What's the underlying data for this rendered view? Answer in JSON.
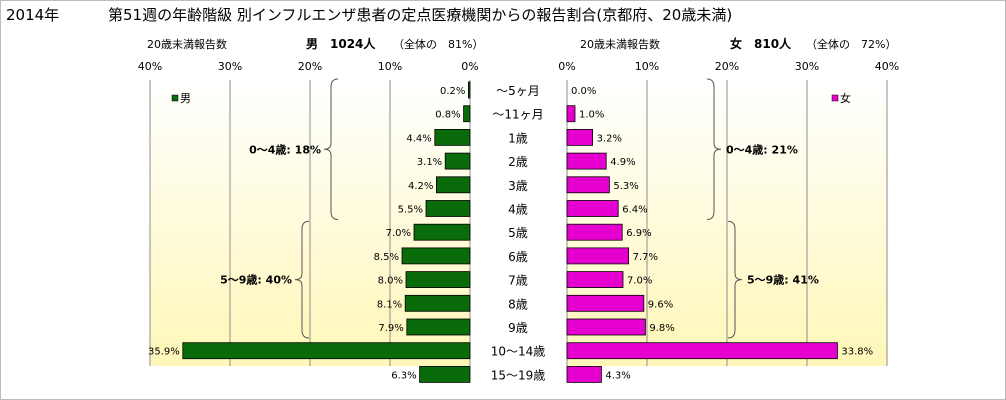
{
  "title": {
    "year": "2014年",
    "main": "第51週の年齢階級 別インフルエンザ患者の定点医療機関からの報告割合(京都府、20歳未満)"
  },
  "male_header": {
    "count_label": "20歳未満報告数",
    "summary": "男　1024人",
    "share": "（全体の　81%）"
  },
  "female_header": {
    "count_label": "20歳未満報告数",
    "summary": "女　810人",
    "share": "（全体の　72%）"
  },
  "legend": {
    "male": "男",
    "female": "女"
  },
  "groups": {
    "male": [
      {
        "label": "0～4歳: 18%",
        "from": 0,
        "to": 5
      },
      {
        "label": "5～9歳: 40%",
        "from": 6,
        "to": 10
      }
    ],
    "female": [
      {
        "label": "0～4歳: 21%",
        "from": 0,
        "to": 5
      },
      {
        "label": "5～9歳: 41%",
        "from": 6,
        "to": 10
      }
    ]
  },
  "colors": {
    "male": "#0a6b0a",
    "female": "#e600d0",
    "plot_bg_top": "#ffffff",
    "plot_bg_bottom": "#fff7b8",
    "grid": "#8c8c8c"
  },
  "chart_data": {
    "type": "bar",
    "orientation": "horizontal-butterfly",
    "categories": [
      "～5ヶ月",
      "～11ヶ月",
      "1歳",
      "2歳",
      "3歳",
      "4歳",
      "5歳",
      "6歳",
      "7歳",
      "8歳",
      "9歳",
      "10～14歳",
      "15～19歳"
    ],
    "series": [
      {
        "name": "男",
        "values": [
          0.2,
          0.8,
          4.4,
          3.1,
          4.2,
          5.5,
          7.0,
          8.5,
          8.0,
          8.1,
          7.9,
          35.9,
          6.3
        ],
        "labels": [
          "0.2%",
          "0.8%",
          "4.4%",
          "3.1%",
          "4.2%",
          "5.5%",
          "7.0%",
          "8.5%",
          "8.0%",
          "8.1%",
          "7.9%",
          "35.9%",
          "6.3%"
        ]
      },
      {
        "name": "女",
        "values": [
          0.0,
          1.0,
          3.2,
          4.9,
          5.3,
          6.4,
          6.9,
          7.7,
          7.0,
          9.6,
          9.8,
          33.8,
          4.3
        ],
        "labels": [
          "0.0%",
          "1.0%",
          "3.2%",
          "4.9%",
          "5.3%",
          "6.4%",
          "6.9%",
          "7.7%",
          "7.0%",
          "9.6%",
          "9.8%",
          "33.8%",
          "4.3%"
        ]
      }
    ],
    "xlim": [
      0,
      40
    ],
    "ticks": [
      "0%",
      "10%",
      "20%",
      "30%",
      "40%"
    ],
    "grid": true
  }
}
